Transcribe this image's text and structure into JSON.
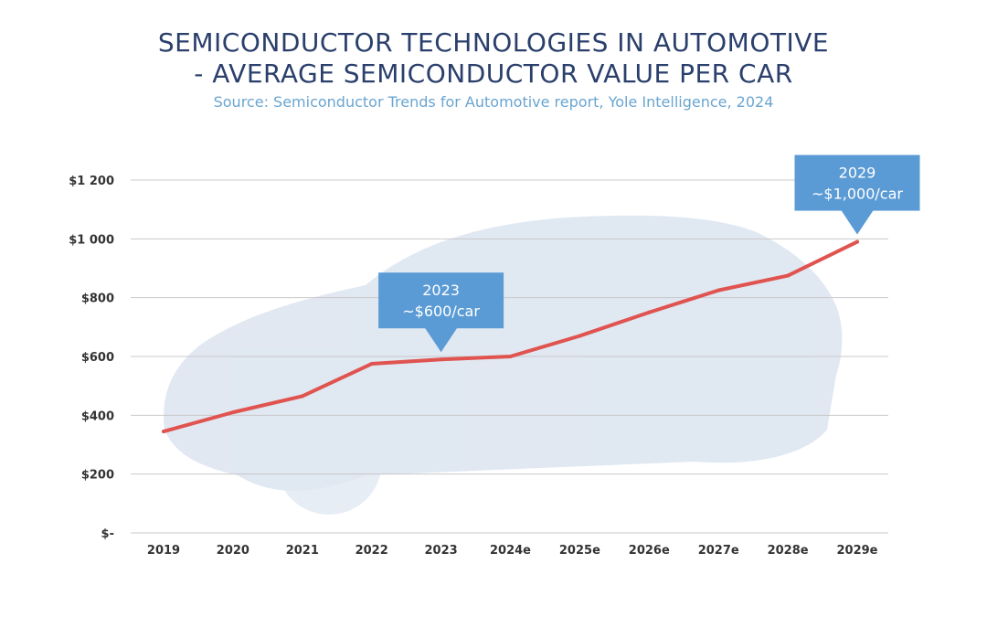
{
  "header": {
    "title_line1": "SEMICONDUCTOR TECHNOLOGIES IN AUTOMOTIVE",
    "title_line2": "- AVERAGE SEMICONDUCTOR VALUE PER CAR",
    "subtitle": "Source: Semiconductor Trends for Automotive report, Yole Intelligence, 2024"
  },
  "colors": {
    "line": "#e0534f",
    "grid": "#c9c9c9",
    "callout": "#5b9bd5",
    "car": "#c8d6e8"
  },
  "chart_data": {
    "type": "line",
    "categories": [
      "2019",
      "2020",
      "2021",
      "2022",
      "2023",
      "2024e",
      "2025e",
      "2026e",
      "2027e",
      "2028e",
      "2029e"
    ],
    "series": [
      {
        "values": [
          345,
          410,
          465,
          575,
          590,
          600,
          670,
          750,
          825,
          875,
          990
        ]
      }
    ],
    "ylim": [
      0,
      1200
    ],
    "yticks": [
      0,
      200,
      400,
      600,
      800,
      1000,
      1200
    ],
    "ytick_labels": [
      "$-",
      "$200",
      "$400",
      "$600",
      "$800",
      "$1 000",
      "$1 200"
    ],
    "grid": true,
    "annotations": [
      {
        "category": "2023",
        "line1": "2023",
        "line2": "~$600/car"
      },
      {
        "category": "2029e",
        "line1": "2029",
        "line2": "~$1,000/car"
      }
    ]
  }
}
